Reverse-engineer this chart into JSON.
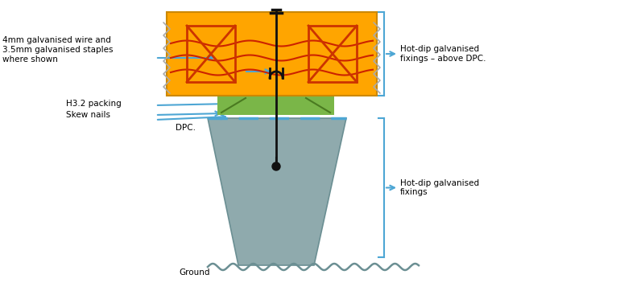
{
  "bg_color": "#ffffff",
  "arrow_color": "#4da6d4",
  "pile_color": "#8faaad",
  "pile_outline": "#6b8f93",
  "orange_color": "#FFA500",
  "dark_orange": "#cc3300",
  "green_color": "#7ab648",
  "dpc_dashed": "#4da6d4",
  "bolt_color": "#111111",
  "red_line_color": "#cc2200",
  "bracket_color": "#4da6d4",
  "zigzag_color": "#aaaaaa",
  "labels": {
    "wire": "4mm galvanised wire and\n3.5mm galvanised staples\nwhere shown",
    "packing": "H3.2 packing",
    "skew": "Skew nails",
    "dpc": "DPC.",
    "ground": "Ground",
    "top_right": "Hot-dip galvanised\nfixings – above DPC.",
    "bot_right": "Hot-dip galvanised\nfixings"
  }
}
